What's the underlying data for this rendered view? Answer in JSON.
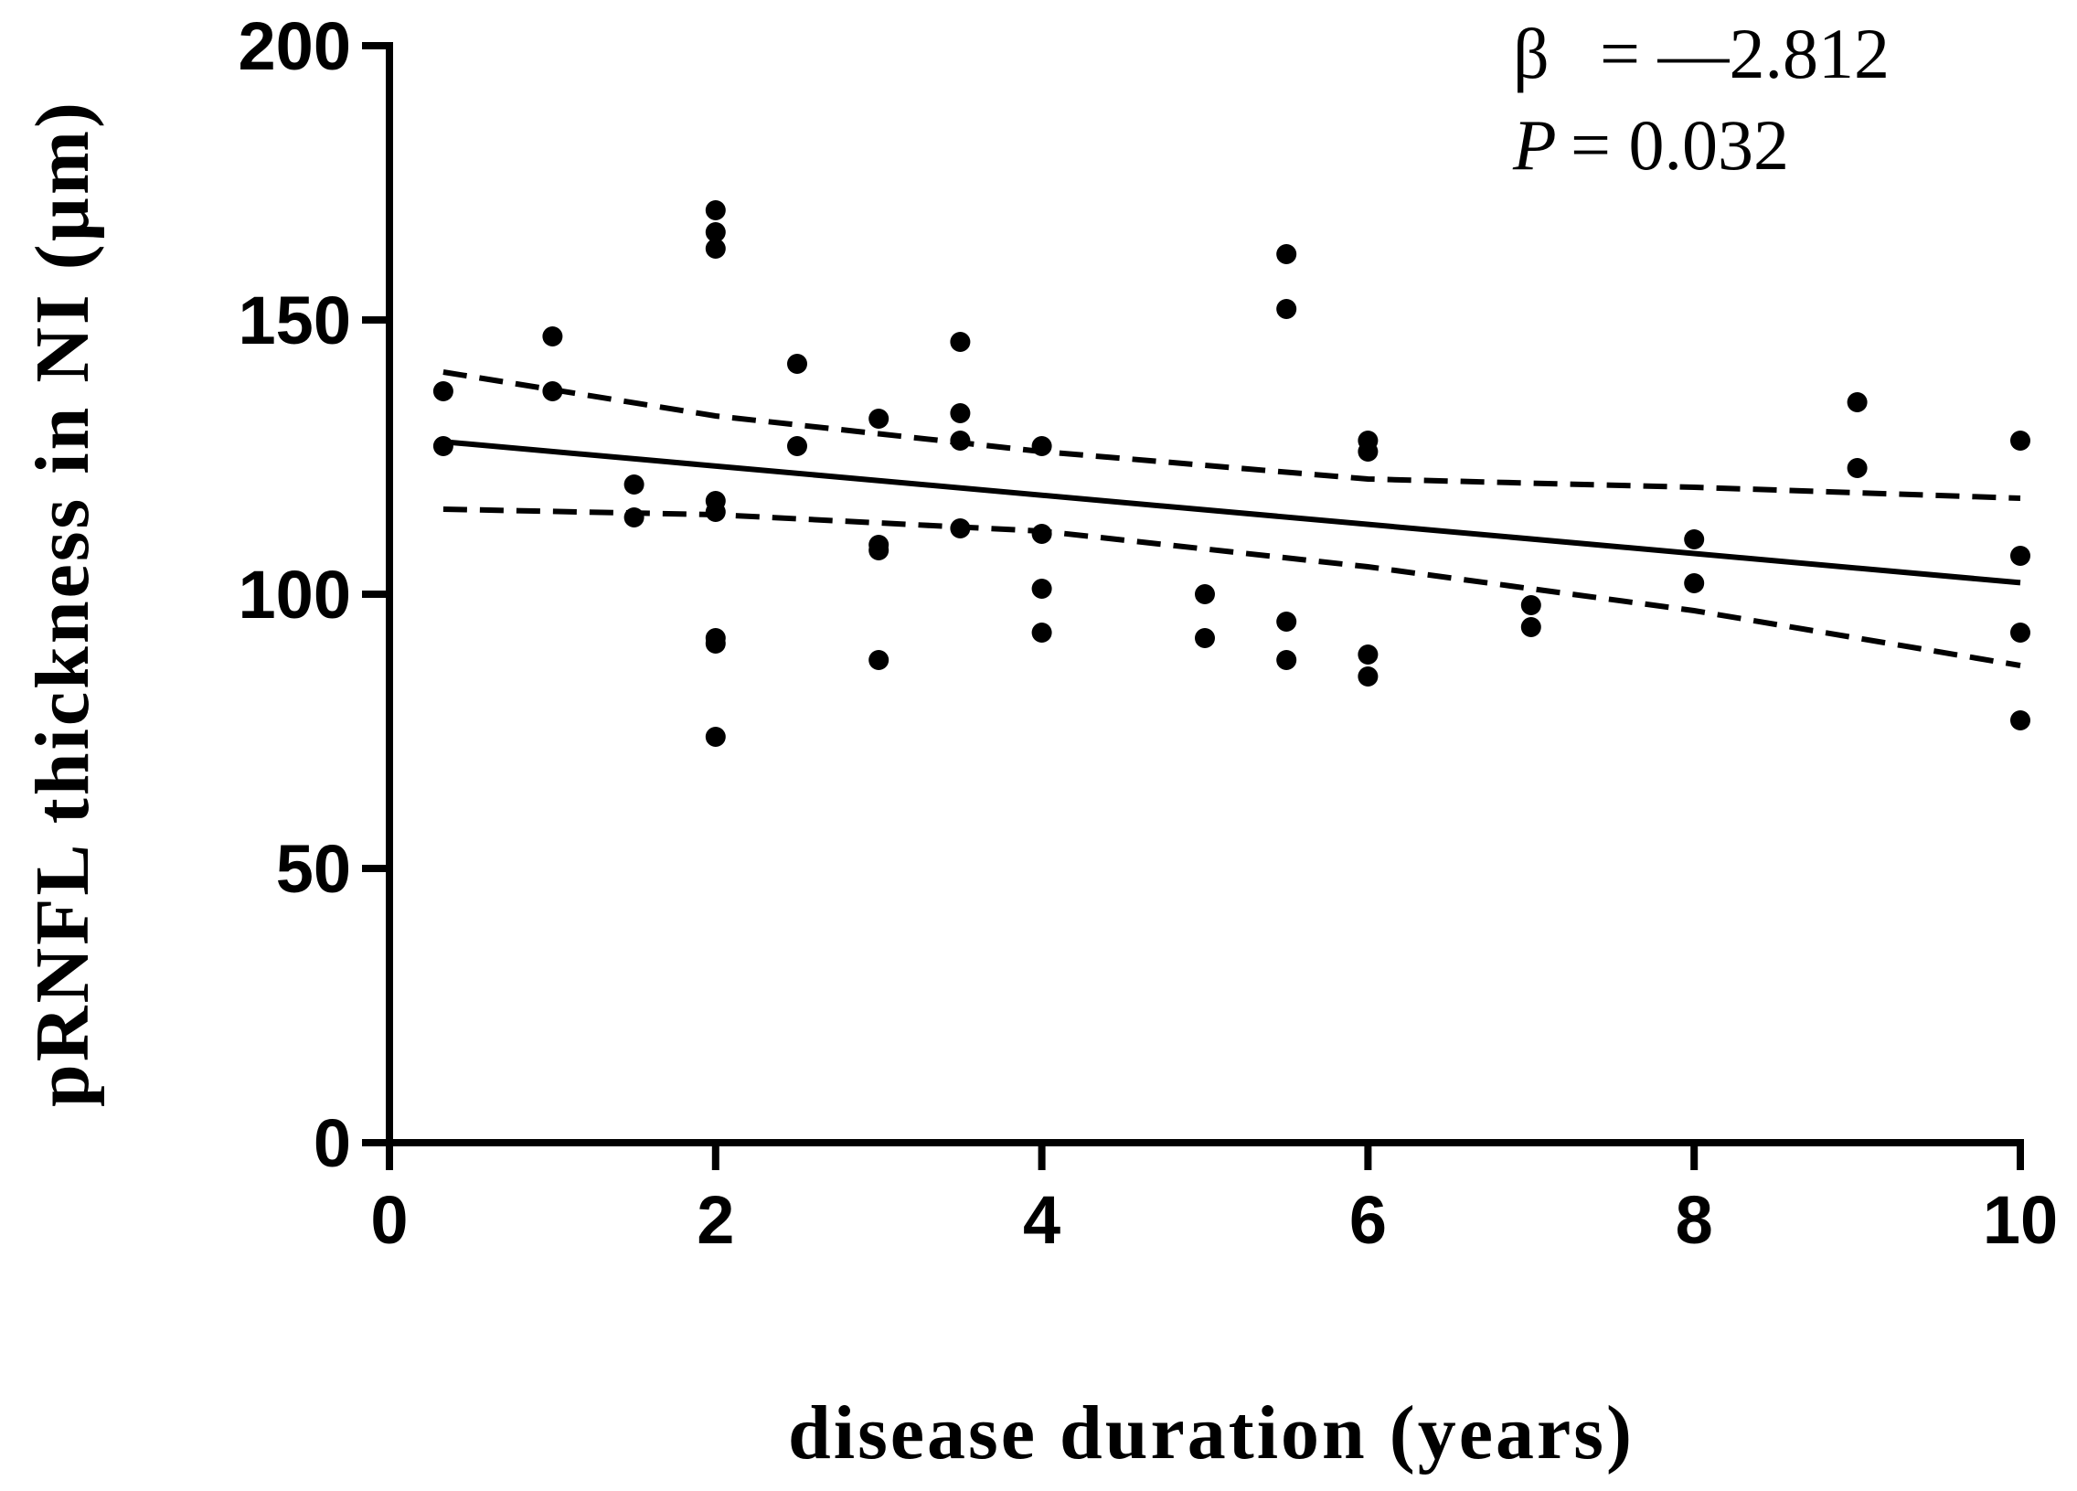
{
  "chart_data": {
    "type": "scatter",
    "title": "",
    "xlabel": "disease duration (years)",
    "ylabel": "pRNFL thickness in NI (µm)",
    "xlim": [
      0,
      10
    ],
    "ylim": [
      0,
      200
    ],
    "xticks": [
      0,
      2,
      4,
      6,
      8,
      10
    ],
    "yticks": [
      0,
      50,
      100,
      150,
      200
    ],
    "series": [
      {
        "name": "observations",
        "type": "scatter",
        "x": [
          0.33,
          0.33,
          1,
          1,
          1.5,
          1.5,
          2,
          2,
          2,
          2,
          2,
          2,
          2,
          2,
          2.5,
          2.5,
          3,
          3,
          3,
          3,
          3.5,
          3.5,
          3.5,
          3.5,
          4,
          4,
          4,
          4,
          5,
          5,
          5.5,
          5.5,
          5.5,
          5.5,
          6,
          6,
          6,
          6,
          7,
          7,
          8,
          8,
          9,
          9,
          10,
          10,
          10,
          10
        ],
        "y": [
          137,
          127,
          147,
          137,
          120,
          114,
          170,
          166,
          163,
          117,
          115,
          92,
          91,
          74,
          142,
          127,
          132,
          109,
          108,
          88,
          146,
          133,
          128,
          112,
          127,
          111,
          101,
          93,
          100,
          92,
          162,
          152,
          95,
          88,
          128,
          126,
          89,
          85,
          98,
          94,
          110,
          102,
          135,
          123,
          128,
          107,
          93,
          77
        ]
      },
      {
        "name": "regression line",
        "type": "line",
        "style": "solid",
        "x": [
          0.33,
          10
        ],
        "y": [
          127.8,
          102.1
        ]
      },
      {
        "name": "upper 95% CI",
        "type": "line",
        "style": "dashed",
        "x": [
          0.33,
          2,
          4,
          6,
          8,
          10
        ],
        "y": [
          140.5,
          132.5,
          126.0,
          121.0,
          119.5,
          117.5
        ]
      },
      {
        "name": "lower 95% CI",
        "type": "line",
        "style": "dashed",
        "x": [
          0.33,
          2,
          4,
          6,
          8,
          10
        ],
        "y": [
          115.5,
          114.5,
          111.5,
          105.0,
          97.0,
          87.0
        ]
      }
    ],
    "annotations": {
      "beta_symbol": "β",
      "beta_value": "= —2.812",
      "p_symbol": "P",
      "p_value": "= 0.032"
    }
  }
}
